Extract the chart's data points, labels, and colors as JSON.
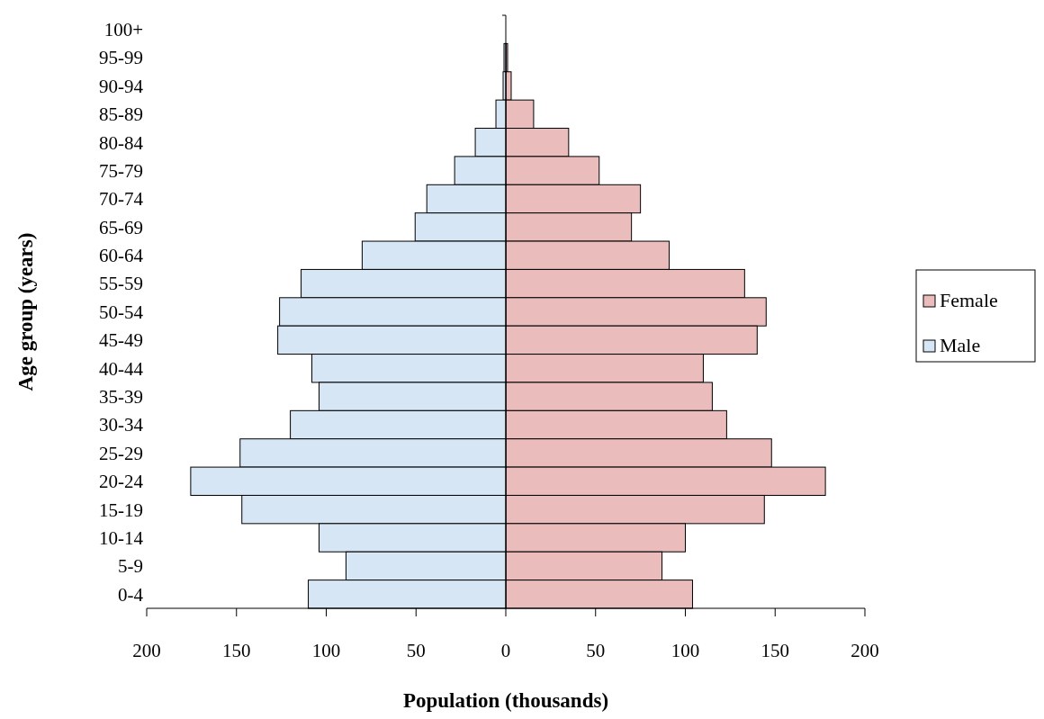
{
  "chart_data": {
    "type": "bar",
    "orientation": "horizontal",
    "xlabel": "Population (thousands)",
    "ylabel": "Age group (years)",
    "categories": [
      "100+",
      "95-99",
      "90-94",
      "85-89",
      "80-84",
      "75-79",
      "70-74",
      "65-69",
      "60-64",
      "55-59",
      "50-54",
      "45-49",
      "40-44",
      "35-39",
      "30-34",
      "25-29",
      "20-24",
      "15-19",
      "10-14",
      "5-9",
      "0-4"
    ],
    "series": [
      {
        "name": "Female",
        "color": "#ebbcbc",
        "values": [
          0,
          1,
          3,
          15.5,
          35,
          52,
          75,
          70,
          91,
          133,
          145,
          140,
          110,
          115,
          123,
          148,
          178,
          144,
          100,
          87,
          104
        ]
      },
      {
        "name": "Male",
        "color": "#d6e6f5",
        "values": [
          0,
          -1,
          -1.5,
          -5.5,
          -17,
          -28.5,
          -44,
          -50.5,
          -80,
          -114,
          -126,
          -127,
          -108,
          -104,
          -120,
          -148,
          -175.5,
          -147,
          -104,
          -89,
          -110
        ]
      }
    ],
    "xlim": [
      -200,
      200
    ],
    "xticks": [
      {
        "value": -200,
        "label": "200"
      },
      {
        "value": -150,
        "label": "150"
      },
      {
        "value": -100,
        "label": "100"
      },
      {
        "value": -50,
        "label": "50"
      },
      0,
      50,
      100,
      150,
      200
    ],
    "stacked": true,
    "grid": false,
    "legend": "right",
    "ref_lines": [
      {
        "axis": "x",
        "value": 0,
        "color": "#000000"
      }
    ]
  }
}
